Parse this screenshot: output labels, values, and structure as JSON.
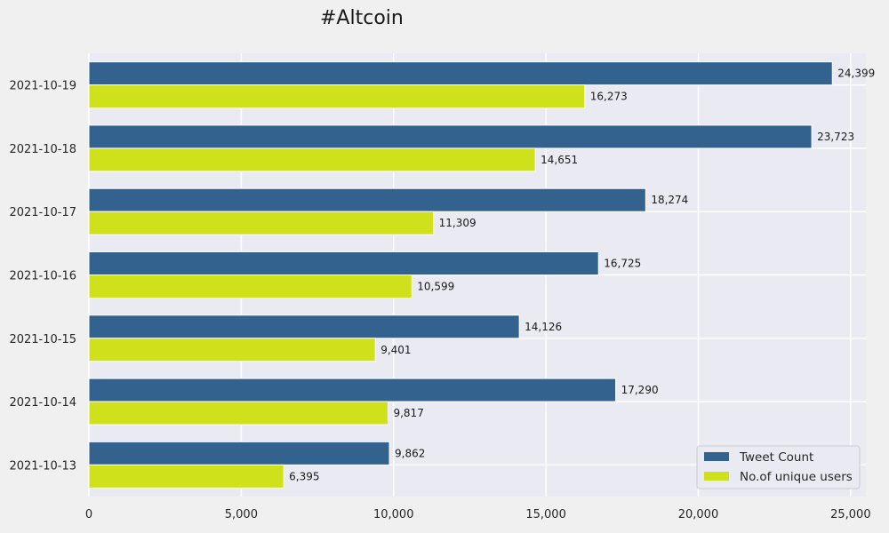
{
  "chart_data": {
    "type": "bar",
    "orientation": "horizontal",
    "title": "#Altcoin",
    "xlabel": "",
    "ylabel": "",
    "categories": [
      "2021-10-19",
      "2021-10-18",
      "2021-10-17",
      "2021-10-16",
      "2021-10-15",
      "2021-10-14",
      "2021-10-13"
    ],
    "series": [
      {
        "name": "Tweet Count",
        "color": "#33628f",
        "values": [
          24399,
          23723,
          18274,
          16725,
          14126,
          17290,
          9862
        ]
      },
      {
        "name": "No.of unique users",
        "color": "#cfe11b",
        "values": [
          16273,
          14651,
          11309,
          10599,
          9401,
          9817,
          6395
        ]
      }
    ],
    "xlim": [
      0,
      25500
    ],
    "xticks": [
      0,
      5000,
      10000,
      15000,
      20000,
      25000
    ],
    "xtick_labels": [
      "0",
      "5,000",
      "10,000",
      "15,000",
      "20,000",
      "25,000"
    ],
    "grid": true,
    "legend_position": "lower-right",
    "plot_background": "#eaeaf2"
  }
}
